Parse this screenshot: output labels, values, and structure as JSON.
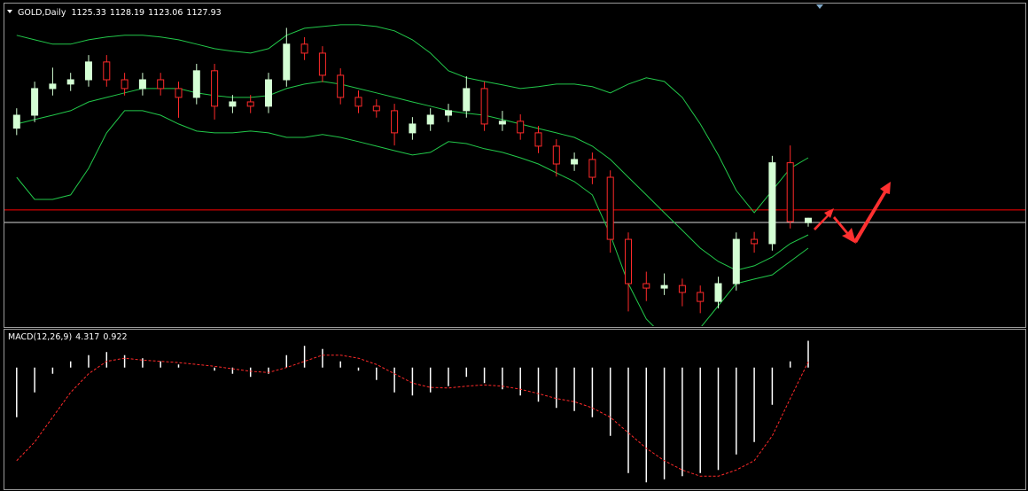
{
  "chart_data": [
    {
      "type": "candlestick",
      "title": "GOLD,Daily",
      "candles": {
        "open": [
          1180.0,
          1187.5,
          1202.9,
          1205.5,
          1208.0,
          1218.3,
          1208.0,
          1202.9,
          1208.0,
          1202.9,
          1197.8,
          1213.2,
          1192.7,
          1195.2,
          1192.7,
          1208.0,
          1228.6,
          1223.4,
          1210.6,
          1197.8,
          1192.7,
          1190.1,
          1177.3,
          1182.4,
          1187.5,
          1190.1,
          1202.9,
          1182.4,
          1184.0,
          1177.3,
          1169.6,
          1159.3,
          1161.9,
          1151.6,
          1115.7,
          1090.1,
          1087.5,
          1089.0,
          1085.0,
          1079.8,
          1090.1,
          1115.7,
          1113.2,
          1160.0,
          1125.33
        ],
        "high": [
          1191.5,
          1206.9,
          1215.0,
          1212.0,
          1222.3,
          1222.3,
          1212.0,
          1212.0,
          1212.0,
          1206.9,
          1217.2,
          1217.2,
          1199.2,
          1199.2,
          1212.0,
          1238.0,
          1232.6,
          1227.4,
          1214.6,
          1201.8,
          1196.7,
          1194.1,
          1186.4,
          1191.5,
          1194.1,
          1210.0,
          1206.9,
          1190.0,
          1188.0,
          1181.3,
          1173.6,
          1165.9,
          1165.9,
          1155.6,
          1119.7,
          1097.0,
          1096.0,
          1093.0,
          1089.0,
          1094.1,
          1119.7,
          1120.0,
          1164.0,
          1170.0,
          1128.19
        ],
        "low": [
          1176.0,
          1183.5,
          1198.9,
          1201.5,
          1204.0,
          1204.0,
          1198.9,
          1198.9,
          1198.9,
          1186.0,
          1193.8,
          1185.0,
          1188.7,
          1188.7,
          1188.7,
          1204.0,
          1219.4,
          1206.6,
          1193.8,
          1188.7,
          1186.1,
          1170.0,
          1173.3,
          1178.4,
          1183.5,
          1186.1,
          1178.4,
          1178.4,
          1173.3,
          1165.6,
          1152.0,
          1155.3,
          1147.6,
          1108.0,
          1074.0,
          1080.0,
          1083.5,
          1077.0,
          1073.0,
          1075.8,
          1086.1,
          1108.0,
          1109.2,
          1122.0,
          1123.06
        ],
        "close": [
          1187.5,
          1202.9,
          1205.5,
          1208.0,
          1218.3,
          1208.0,
          1202.9,
          1208.0,
          1202.9,
          1197.8,
          1213.2,
          1192.7,
          1195.2,
          1192.7,
          1208.0,
          1228.6,
          1223.4,
          1210.6,
          1197.8,
          1192.7,
          1190.1,
          1177.3,
          1182.4,
          1187.5,
          1190.1,
          1202.9,
          1182.4,
          1184.0,
          1177.3,
          1169.6,
          1159.3,
          1161.9,
          1151.6,
          1115.7,
          1090.1,
          1087.5,
          1089.0,
          1085.0,
          1079.8,
          1090.1,
          1115.7,
          1113.2,
          1160.0,
          1126.0,
          1127.93
        ]
      },
      "bands": {
        "upper": [
          1233.7,
          1231.1,
          1228.6,
          1228.6,
          1231.1,
          1232.7,
          1233.7,
          1233.7,
          1232.7,
          1231.1,
          1228.6,
          1226.0,
          1224.5,
          1223.4,
          1226.0,
          1233.7,
          1237.8,
          1238.8,
          1239.8,
          1239.8,
          1238.8,
          1236.3,
          1231.1,
          1223.4,
          1213.2,
          1209.1,
          1207.0,
          1205.0,
          1202.9,
          1204.0,
          1205.5,
          1205.5,
          1204.0,
          1200.4,
          1205.5,
          1209.1,
          1207.0,
          1197.8,
          1182.4,
          1164.5,
          1144.0,
          1131.1,
          1144.0,
          1156.8,
          1162.9
        ],
        "middle": [
          1182.4,
          1185.0,
          1187.5,
          1190.1,
          1195.2,
          1197.8,
          1200.4,
          1202.9,
          1202.9,
          1202.9,
          1200.4,
          1198.8,
          1197.8,
          1197.8,
          1198.8,
          1202.9,
          1205.5,
          1207.0,
          1205.5,
          1202.9,
          1200.4,
          1197.8,
          1195.2,
          1192.7,
          1190.1,
          1188.6,
          1187.5,
          1185.0,
          1182.4,
          1179.8,
          1177.3,
          1174.7,
          1169.6,
          1161.9,
          1151.6,
          1141.4,
          1131.1,
          1120.9,
          1110.6,
          1102.9,
          1097.8,
          1100.4,
          1105.5,
          1113.2,
          1118.3
        ],
        "lower": [
          1151.6,
          1138.8,
          1138.8,
          1141.4,
          1156.8,
          1177.3,
          1190.1,
          1190.1,
          1187.5,
          1182.4,
          1178.3,
          1177.3,
          1177.3,
          1178.3,
          1177.3,
          1174.7,
          1174.7,
          1176.3,
          1174.7,
          1172.2,
          1169.6,
          1167.0,
          1164.5,
          1166.0,
          1172.2,
          1171.1,
          1168.1,
          1166.0,
          1162.9,
          1159.3,
          1154.2,
          1149.1,
          1141.4,
          1118.3,
          1090.1,
          1069.6,
          1059.3,
          1056.8,
          1064.5,
          1077.3,
          1090.1,
          1092.7,
          1095.2,
          1102.9,
          1110.6
        ]
      },
      "band_color": "#22c84a",
      "up_color": "#d4ffd4",
      "down_color": "#ff2a2a",
      "levels": [
        {
          "value": 1132.7,
          "color": "#ff0000"
        },
        {
          "value": 1125.5,
          "color": "#d8d8d8"
        }
      ],
      "ylim": [
        1065.5,
        1249
      ]
    },
    {
      "type": "macd",
      "title": "MACD(12,26,9)",
      "histogram": [
        -8,
        -4,
        -1,
        1,
        2,
        2.5,
        2,
        1.5,
        1,
        0.5,
        0,
        -0.5,
        -1,
        -1.5,
        -1,
        2,
        3.5,
        3,
        1,
        -0.5,
        -2,
        -4,
        -4.5,
        -4,
        -3,
        -1.5,
        -2.5,
        -3.5,
        -4.5,
        -5.5,
        -6.5,
        -7,
        -8,
        -11,
        -17,
        -18.5,
        -18,
        -17.5,
        -17,
        -16.5,
        -14,
        -12,
        -6,
        1,
        4.317
      ],
      "signal": [
        -15,
        -12,
        -8,
        -4,
        -1,
        1,
        1.5,
        1.2,
        1,
        0.8,
        0.5,
        0.2,
        -0.2,
        -0.6,
        -0.8,
        0,
        1,
        2,
        2,
        1.5,
        0.5,
        -1,
        -2.5,
        -3.2,
        -3.3,
        -3,
        -2.8,
        -3,
        -3.5,
        -4.2,
        -5,
        -5.5,
        -6.5,
        -8,
        -10.5,
        -13,
        -15,
        -16.5,
        -17.5,
        -17.5,
        -16.5,
        -15,
        -11,
        -5,
        0.922
      ],
      "hist_color": "#ffffff",
      "signal_color": "#ff2a2a",
      "ylim": [
        -19.6,
        6.1
      ]
    }
  ]
}
